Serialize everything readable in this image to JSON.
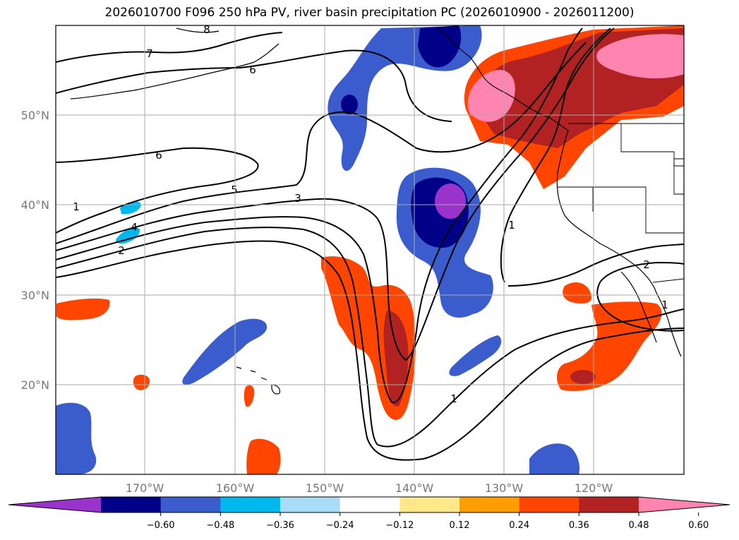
{
  "title": "2026010700 F096 250 hPa PV, river basin precipitation PC (2026010900 - 2026011200)",
  "lat_ticks": [
    "50°N",
    "40°N",
    "30°N",
    "20°N"
  ],
  "lon_ticks": [
    "170°W",
    "160°W",
    "150°W",
    "140°W",
    "130°W",
    "120°W"
  ],
  "contour_labels": [
    "8",
    "7",
    "6",
    "6",
    "5",
    "4",
    "3",
    "2",
    "1",
    "1",
    "1",
    "2",
    "1"
  ],
  "colorbar": {
    "ticks": [
      "−0.60",
      "−0.48",
      "−0.36",
      "−0.24",
      "−0.12",
      "0.12",
      "0.24",
      "0.36",
      "0.48",
      "0.60"
    ],
    "colors": [
      "#9933cc",
      "#000088",
      "#3b5ccc",
      "#00b8ee",
      "#a8dcf8",
      "#ffffff",
      "#ffe78a",
      "#ff9e00",
      "#ff4500",
      "#b22222",
      "#ff85b0"
    ]
  },
  "chart_data": {
    "type": "map-contour",
    "projection": "PlateCarree",
    "lon_range": [
      -180,
      -110
    ],
    "lat_range": [
      10,
      60
    ],
    "contour_field": "250 hPa PV (PVU)",
    "contour_levels": [
      1,
      2,
      3,
      4,
      5,
      6,
      7,
      8
    ],
    "shaded_field": "river basin precipitation PC",
    "shading_levels": [
      -0.6,
      -0.48,
      -0.36,
      -0.24,
      -0.12,
      0.12,
      0.24,
      0.36,
      0.48,
      0.6
    ]
  }
}
